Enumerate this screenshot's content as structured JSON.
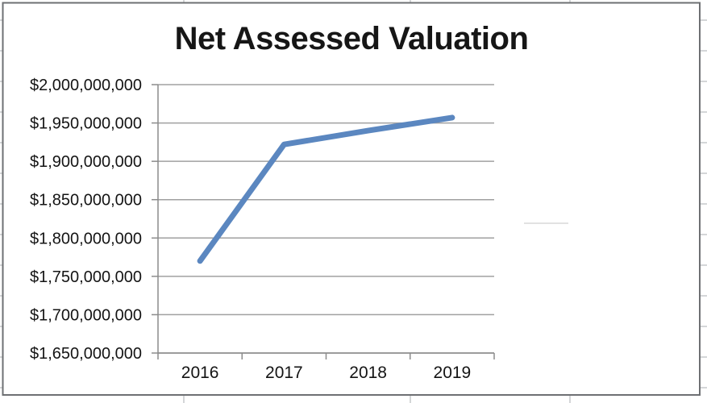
{
  "chart_data": {
    "type": "line",
    "title": "Net Assessed Valuation",
    "categories": [
      "2016",
      "2017",
      "2018",
      "2019"
    ],
    "series": [
      {
        "name": "Net Assessed Valuation",
        "values": [
          1770000000,
          1922000000,
          1940000000,
          1957000000
        ]
      }
    ],
    "ylim": [
      1650000000,
      2000000000
    ],
    "ytick_step": 50000000,
    "yticks": [
      {
        "value": 2000000000,
        "label": "$2,000,000,000"
      },
      {
        "value": 1950000000,
        "label": "$1,950,000,000"
      },
      {
        "value": 1900000000,
        "label": "$1,900,000,000"
      },
      {
        "value": 1850000000,
        "label": "$1,850,000,000"
      },
      {
        "value": 1800000000,
        "label": "$1,800,000,000"
      },
      {
        "value": 1750000000,
        "label": "$1,750,000,000"
      },
      {
        "value": 1700000000,
        "label": "$1,700,000,000"
      },
      {
        "value": 1650000000,
        "label": "$1,650,000,000"
      }
    ],
    "grid": true,
    "legend": "none",
    "colors": {
      "line": "#5b87c0",
      "gridline": "#a0a0a0",
      "axis": "#8c8c8c",
      "chart_border": "#6e7073",
      "sheet_gridline": "#c6c8ca",
      "text": "#141414",
      "background": "#ffffff",
      "artifact": "#d8d8d8"
    }
  }
}
